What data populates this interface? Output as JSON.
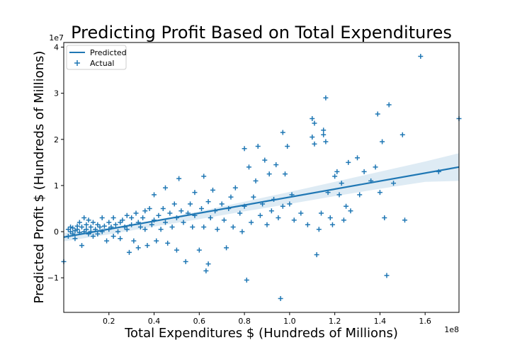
{
  "chart_data": {
    "type": "scatter",
    "title": "Predicting Profit Based on Total Expenditures",
    "xlabel": "Total Expenditures $ (Hundreds of Millions)",
    "ylabel": "Predicted Profit $ (Hundreds of Millions)",
    "x_multiplier_label": "1e8",
    "y_multiplier_label": "1e7",
    "xlim": [
      0.0,
      1.75
    ],
    "ylim": [
      -1.75,
      4.1
    ],
    "x_ticks": [
      0.2,
      0.4,
      0.6,
      0.8,
      1.0,
      1.2,
      1.4,
      1.6
    ],
    "x_tick_labels": [
      "0.2",
      "0.4",
      "0.6",
      "0.8",
      "1.0",
      "1.2",
      "1.4",
      "1.6"
    ],
    "y_ticks": [
      -1,
      0,
      1,
      2,
      3,
      4
    ],
    "y_tick_labels": [
      "−1",
      "0",
      "1",
      "2",
      "3",
      "4"
    ],
    "grid": false,
    "legend_position": "top-left",
    "legend": [
      "Predicted",
      "Actual"
    ],
    "colors": {
      "series": "#1f77b4",
      "band": "#1f77b4"
    },
    "regression": {
      "x": [
        0.0,
        1.75
      ],
      "y": [
        -0.12,
        1.4
      ]
    },
    "confidence_band": {
      "x": [
        0.0,
        0.2,
        0.4,
        0.6,
        0.8,
        1.0,
        1.2,
        1.4,
        1.6,
        1.75
      ],
      "upper": [
        -0.03,
        0.09,
        0.25,
        0.44,
        0.65,
        0.86,
        1.08,
        1.3,
        1.52,
        1.7
      ],
      "lower": [
        -0.21,
        -0.06,
        0.11,
        0.27,
        0.44,
        0.6,
        0.77,
        0.93,
        1.08,
        1.1
      ]
    },
    "series": [
      {
        "name": "Actual",
        "marker": "+",
        "points": [
          [
            0.0,
            -0.65
          ],
          [
            0.02,
            0.05
          ],
          [
            0.02,
            -0.1
          ],
          [
            0.03,
            0.0
          ],
          [
            0.03,
            0.1
          ],
          [
            0.04,
            -0.05
          ],
          [
            0.04,
            0.08
          ],
          [
            0.05,
            0.02
          ],
          [
            0.05,
            -0.15
          ],
          [
            0.06,
            0.05
          ],
          [
            0.06,
            0.12
          ],
          [
            0.07,
            -0.02
          ],
          [
            0.07,
            0.2
          ],
          [
            0.08,
            0.1
          ],
          [
            0.08,
            -0.3
          ],
          [
            0.09,
            0.0
          ],
          [
            0.09,
            0.3
          ],
          [
            0.1,
            0.05
          ],
          [
            0.1,
            0.15
          ],
          [
            0.11,
            -0.05
          ],
          [
            0.11,
            0.25
          ],
          [
            0.12,
            0.1
          ],
          [
            0.12,
            0.0
          ],
          [
            0.13,
            0.2
          ],
          [
            0.13,
            -0.1
          ],
          [
            0.14,
            0.05
          ],
          [
            0.15,
            0.15
          ],
          [
            0.15,
            -0.05
          ],
          [
            0.16,
            0.1
          ],
          [
            0.17,
            0.0
          ],
          [
            0.17,
            0.3
          ],
          [
            0.18,
            0.12
          ],
          [
            0.19,
            -0.2
          ],
          [
            0.2,
            0.05
          ],
          [
            0.2,
            0.2
          ],
          [
            0.21,
            0.1
          ],
          [
            0.22,
            -0.1
          ],
          [
            0.22,
            0.3
          ],
          [
            0.23,
            0.15
          ],
          [
            0.24,
            0.0
          ],
          [
            0.25,
            0.2
          ],
          [
            0.25,
            -0.15
          ],
          [
            0.26,
            0.25
          ],
          [
            0.27,
            0.1
          ],
          [
            0.28,
            0.05
          ],
          [
            0.28,
            0.35
          ],
          [
            0.29,
            -0.45
          ],
          [
            0.3,
            0.15
          ],
          [
            0.3,
            0.3
          ],
          [
            0.31,
            -0.2
          ],
          [
            0.32,
            0.4
          ],
          [
            0.33,
            0.2
          ],
          [
            0.33,
            -0.35
          ],
          [
            0.34,
            0.1
          ],
          [
            0.35,
            0.3
          ],
          [
            0.36,
            0.45
          ],
          [
            0.36,
            0.05
          ],
          [
            0.37,
            -0.3
          ],
          [
            0.38,
            0.5
          ],
          [
            0.39,
            0.15
          ],
          [
            0.4,
            0.8
          ],
          [
            0.4,
            0.25
          ],
          [
            0.41,
            -0.2
          ],
          [
            0.42,
            0.35
          ],
          [
            0.43,
            0.05
          ],
          [
            0.44,
            0.5
          ],
          [
            0.45,
            0.95
          ],
          [
            0.45,
            0.2
          ],
          [
            0.46,
            -0.25
          ],
          [
            0.47,
            0.4
          ],
          [
            0.48,
            0.1
          ],
          [
            0.49,
            0.6
          ],
          [
            0.5,
            0.3
          ],
          [
            0.5,
            -0.4
          ],
          [
            0.51,
            1.15
          ],
          [
            0.52,
            0.45
          ],
          [
            0.53,
            0.2
          ],
          [
            0.54,
            -0.65
          ],
          [
            0.55,
            0.4
          ],
          [
            0.56,
            0.6
          ],
          [
            0.57,
            0.1
          ],
          [
            0.58,
            0.85
          ],
          [
            0.58,
            0.35
          ],
          [
            0.6,
            -0.4
          ],
          [
            0.61,
            0.5
          ],
          [
            0.62,
            1.2
          ],
          [
            0.62,
            0.1
          ],
          [
            0.63,
            -0.85
          ],
          [
            0.64,
            0.65
          ],
          [
            0.64,
            -0.7
          ],
          [
            0.65,
            0.3
          ],
          [
            0.66,
            0.9
          ],
          [
            0.67,
            0.45
          ],
          [
            0.68,
            0.05
          ],
          [
            0.7,
            0.6
          ],
          [
            0.71,
            0.25
          ],
          [
            0.72,
            -0.35
          ],
          [
            0.73,
            0.5
          ],
          [
            0.74,
            0.75
          ],
          [
            0.75,
            0.1
          ],
          [
            0.76,
            0.95
          ],
          [
            0.78,
            0.4
          ],
          [
            0.79,
            0.0
          ],
          [
            0.8,
            1.8
          ],
          [
            0.8,
            0.55
          ],
          [
            0.81,
            -1.05
          ],
          [
            0.82,
            1.4
          ],
          [
            0.83,
            0.2
          ],
          [
            0.84,
            0.75
          ],
          [
            0.85,
            1.1
          ],
          [
            0.86,
            1.85
          ],
          [
            0.87,
            0.35
          ],
          [
            0.88,
            0.6
          ],
          [
            0.89,
            1.55
          ],
          [
            0.9,
            0.15
          ],
          [
            0.91,
            1.25
          ],
          [
            0.92,
            0.45
          ],
          [
            0.93,
            0.7
          ],
          [
            0.94,
            1.45
          ],
          [
            0.95,
            0.3
          ],
          [
            0.96,
            -1.45
          ],
          [
            0.97,
            0.55
          ],
          [
            0.97,
            2.15
          ],
          [
            0.98,
            1.25
          ],
          [
            0.99,
            1.85
          ],
          [
            1.0,
            0.6
          ],
          [
            1.01,
            0.8
          ],
          [
            1.02,
            0.25
          ],
          [
            1.05,
            0.4
          ],
          [
            1.08,
            0.15
          ],
          [
            1.1,
            2.45
          ],
          [
            1.1,
            2.05
          ],
          [
            1.11,
            1.9
          ],
          [
            1.11,
            2.35
          ],
          [
            1.12,
            -0.5
          ],
          [
            1.13,
            0.05
          ],
          [
            1.14,
            0.4
          ],
          [
            1.15,
            2.1
          ],
          [
            1.15,
            2.2
          ],
          [
            1.16,
            1.95
          ],
          [
            1.16,
            2.9
          ],
          [
            1.17,
            0.85
          ],
          [
            1.18,
            0.3
          ],
          [
            1.19,
            0.15
          ],
          [
            1.2,
            1.2
          ],
          [
            1.21,
            1.3
          ],
          [
            1.22,
            0.8
          ],
          [
            1.23,
            1.05
          ],
          [
            1.24,
            0.25
          ],
          [
            1.25,
            0.55
          ],
          [
            1.26,
            1.5
          ],
          [
            1.27,
            0.45
          ],
          [
            1.3,
            1.6
          ],
          [
            1.31,
            0.8
          ],
          [
            1.33,
            1.3
          ],
          [
            1.36,
            1.1
          ],
          [
            1.38,
            1.4
          ],
          [
            1.39,
            2.55
          ],
          [
            1.4,
            0.85
          ],
          [
            1.41,
            1.95
          ],
          [
            1.42,
            0.3
          ],
          [
            1.43,
            -0.95
          ],
          [
            1.44,
            2.75
          ],
          [
            1.46,
            1.05
          ],
          [
            1.5,
            2.1
          ],
          [
            1.51,
            0.25
          ],
          [
            1.58,
            3.8
          ],
          [
            1.66,
            1.3
          ],
          [
            1.75,
            2.45
          ]
        ]
      }
    ]
  }
}
